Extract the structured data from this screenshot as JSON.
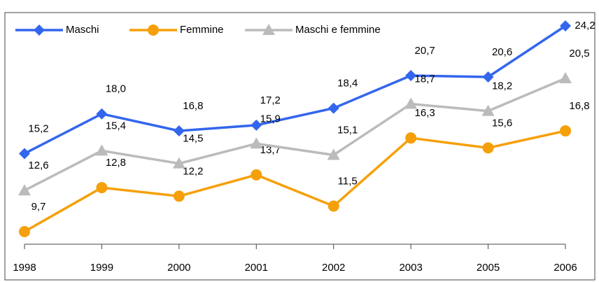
{
  "chart_data": {
    "type": "line",
    "categories": [
      "1998",
      "1999",
      "2000",
      "2001",
      "2002",
      "2003",
      "2005",
      "2006"
    ],
    "legend": "top-left",
    "series": [
      {
        "name": "Maschi",
        "color": "#3366ee",
        "marker": "diamond",
        "values": [
          15.2,
          18.0,
          16.8,
          17.2,
          18.4,
          20.7,
          20.6,
          24.2
        ],
        "value_labels": [
          "15,2",
          "18,0",
          "16,8",
          "17,2",
          "18,4",
          "20,7",
          "20,6",
          "24,2"
        ]
      },
      {
        "name": "Femmine",
        "color": "#f5a00a",
        "marker": "circle",
        "values": [
          9.7,
          12.8,
          12.2,
          13.7,
          11.5,
          16.3,
          15.6,
          16.8
        ],
        "value_labels": [
          "9,7",
          "12,8",
          "12,2",
          "13,7",
          "11,5",
          "16,3",
          "15,6",
          "16,8"
        ]
      },
      {
        "name": "Maschi e femmine",
        "color": "#bbbbbb",
        "marker": "triangle",
        "values": [
          12.6,
          15.4,
          14.5,
          15.9,
          15.1,
          18.7,
          18.2,
          20.5
        ],
        "value_labels": [
          "12,6",
          "15,4",
          "14,5",
          "15,9",
          "15,1",
          "18,7",
          "18,2",
          "20,5"
        ]
      }
    ]
  }
}
